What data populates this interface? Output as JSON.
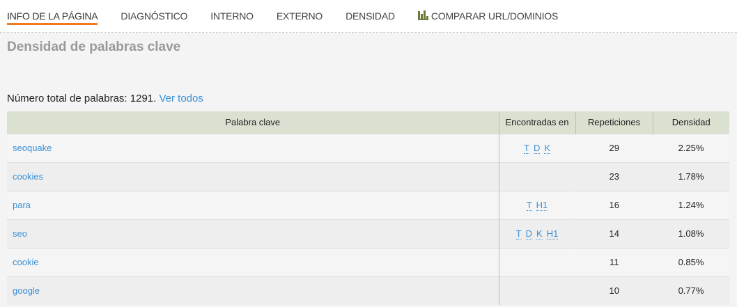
{
  "nav": {
    "tabs": [
      {
        "label": "INFO DE LA PÁGINA",
        "active": true
      },
      {
        "label": "DIAGNÓSTICO"
      },
      {
        "label": "INTERNO"
      },
      {
        "label": "EXTERNO"
      },
      {
        "label": "DENSIDAD"
      },
      {
        "label": "COMPARAR URL/DOMINIOS",
        "icon": "bar-chart-icon"
      }
    ],
    "accent": "#f07a22"
  },
  "section": {
    "title": "Densidad de palabras clave",
    "total_prefix": "Número total de palabras: 1291.",
    "see_all": "Ver todos"
  },
  "table": {
    "headers": [
      "Palabra clave",
      "Encontradas en",
      "Repeticiones",
      "Densidad"
    ],
    "rows": [
      {
        "keyword": "seoquake",
        "found": [
          "T",
          "D",
          "K"
        ],
        "reps": "29",
        "density": "2.25%"
      },
      {
        "keyword": "cookies",
        "found": [],
        "reps": "23",
        "density": "1.78%"
      },
      {
        "keyword": "para",
        "found": [
          "T",
          "H1"
        ],
        "reps": "16",
        "density": "1.24%"
      },
      {
        "keyword": "seo",
        "found": [
          "T",
          "D",
          "K",
          "H1"
        ],
        "reps": "14",
        "density": "1.08%"
      },
      {
        "keyword": "cookie",
        "found": [],
        "reps": "11",
        "density": "0.85%"
      },
      {
        "keyword": "google",
        "found": [],
        "reps": "10",
        "density": "0.77%"
      }
    ]
  }
}
